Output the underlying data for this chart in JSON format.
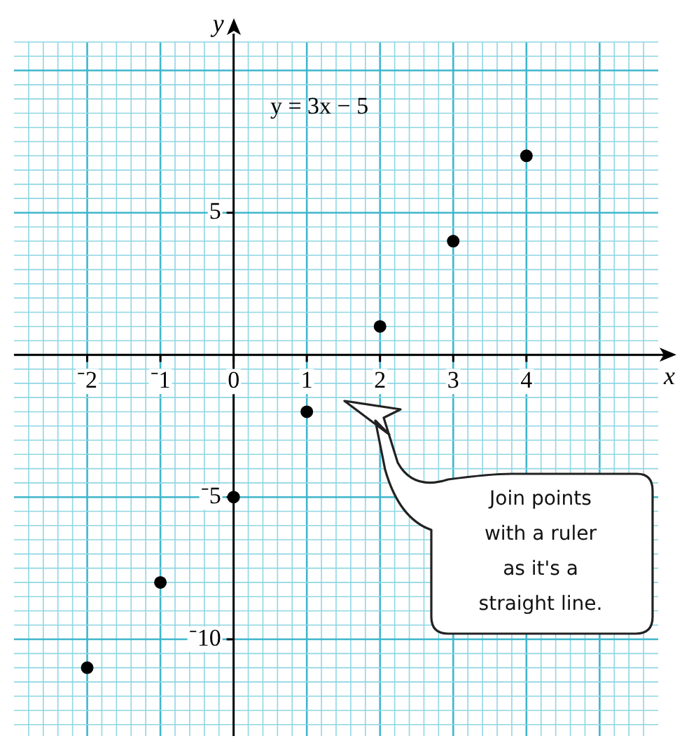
{
  "chart_data": {
    "type": "scatter",
    "xlabel": "x",
    "ylabel": "y",
    "x": [
      -2,
      -1,
      0,
      1,
      2,
      3,
      4
    ],
    "values": [
      -11,
      -8,
      -5,
      -2,
      1,
      4,
      7
    ],
    "color": "#000000",
    "marker": "circle",
    "grid": true,
    "xlim": [
      -3,
      5.8
    ],
    "ylim": [
      -13.4,
      11
    ],
    "xticks": [
      {
        "value": -2.8,
        "label": null
      },
      {
        "value": -2.6,
        "label": null
      },
      {
        "value": -2.4,
        "label": null
      },
      {
        "value": -2.2,
        "label": null
      },
      {
        "value": -2,
        "label": "⁻2"
      },
      {
        "value": -1.8,
        "label": null
      },
      {
        "value": -1.6,
        "label": null
      },
      {
        "value": -1.4,
        "label": null
      },
      {
        "value": -1.2,
        "label": null
      },
      {
        "value": -1,
        "label": "⁻1"
      },
      {
        "value": -0.8,
        "label": null
      },
      {
        "value": -0.6,
        "label": null
      },
      {
        "value": -0.4,
        "label": null
      },
      {
        "value": -0.2,
        "label": null
      },
      0,
      {
        "value": 0.2,
        "label": null
      },
      {
        "value": 0.4,
        "label": null
      },
      {
        "value": 0.6,
        "label": null
      },
      {
        "value": 0.8,
        "label": null
      },
      1,
      {
        "value": 1.2,
        "label": null
      },
      {
        "value": 1.4,
        "label": null
      },
      {
        "value": 1.6,
        "label": null
      },
      {
        "value": 1.8,
        "label": null
      },
      2,
      {
        "value": 2.2,
        "label": null
      },
      {
        "value": 2.4,
        "label": null
      },
      {
        "value": 2.6,
        "label": null
      },
      {
        "value": 2.8,
        "label": null
      },
      3,
      {
        "value": 3.2,
        "label": null
      },
      {
        "value": 3.4,
        "label": null
      },
      {
        "value": 3.6,
        "label": null
      },
      {
        "value": 3.8,
        "label": null
      },
      4,
      {
        "value": 4.2,
        "label": null
      },
      {
        "value": 4.4,
        "label": null
      },
      {
        "value": 4.6,
        "label": null
      },
      {
        "value": 4.8,
        "label": null
      },
      {
        "value": 5,
        "label": null
      },
      {
        "value": 5.2,
        "label": null
      },
      {
        "value": 5.4,
        "label": null
      },
      {
        "value": 5.6,
        "label": null
      }
    ],
    "yticks": [
      {
        "value": -13,
        "label": null
      },
      {
        "value": -12.5,
        "label": null
      },
      {
        "value": -12,
        "label": null
      },
      {
        "value": -11.5,
        "label": null
      },
      {
        "value": -11,
        "label": null
      },
      {
        "value": -10.5,
        "label": null
      },
      {
        "value": -10,
        "label": "⁻10"
      },
      {
        "value": -9.5,
        "label": null
      },
      {
        "value": -9,
        "label": null
      },
      {
        "value": -8.5,
        "label": null
      },
      {
        "value": -8,
        "label": null
      },
      {
        "value": -7.5,
        "label": null
      },
      {
        "value": -7,
        "label": null
      },
      {
        "value": -6.5,
        "label": null
      },
      {
        "value": -6,
        "label": null
      },
      {
        "value": -5.5,
        "label": null
      },
      {
        "value": -5,
        "label": "⁻5"
      },
      {
        "value": -4.5,
        "label": null
      },
      {
        "value": -4,
        "label": null
      },
      {
        "value": -3.5,
        "label": null
      },
      {
        "value": -3,
        "label": null
      },
      {
        "value": -2.5,
        "label": null
      },
      {
        "value": -2,
        "label": null
      },
      {
        "value": -1.5,
        "label": null
      },
      {
        "value": -1,
        "label": null
      },
      {
        "value": -0.5,
        "label": null
      },
      {
        "value": 0,
        "label": null
      },
      {
        "value": 0.5,
        "label": null
      },
      {
        "value": 1,
        "label": null
      },
      {
        "value": 1.5,
        "label": null
      },
      {
        "value": 2,
        "label": null
      },
      {
        "value": 2.5,
        "label": null
      },
      {
        "value": 3,
        "label": null
      },
      {
        "value": 3.5,
        "label": null
      },
      {
        "value": 4,
        "label": null
      },
      {
        "value": 4.5,
        "label": null
      },
      5,
      {
        "value": 5.5,
        "label": null
      },
      {
        "value": 6,
        "label": null
      },
      {
        "value": 6.5,
        "label": null
      },
      {
        "value": 7,
        "label": null
      },
      {
        "value": 7.5,
        "label": null
      },
      {
        "value": 8,
        "label": null
      },
      {
        "value": 8.5,
        "label": null
      },
      {
        "value": 9,
        "label": null
      },
      {
        "value": 9.5,
        "label": null
      },
      {
        "value": 10,
        "label": null
      },
      {
        "value": 10.5,
        "label": null
      },
      {
        "value": 11,
        "label": null
      }
    ],
    "annotations": [
      "y = 3x − 5",
      "Join points with a ruler as it's a straight line."
    ]
  }
}
